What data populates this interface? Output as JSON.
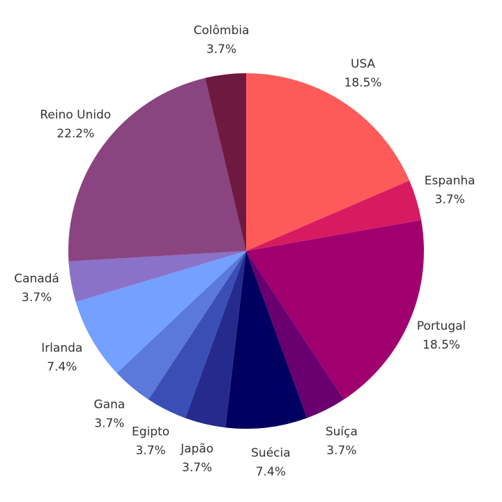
{
  "chart_data": {
    "type": "pie",
    "categories": [
      "USA",
      "Espanha",
      "Portugal",
      "Suíça",
      "Suécia",
      "Japão",
      "Egipto",
      "Gana",
      "Irlanda",
      "Canadá",
      "Reino Unido",
      "Colômbia"
    ],
    "values": [
      18.5,
      3.7,
      18.5,
      3.7,
      7.4,
      3.7,
      3.7,
      3.7,
      7.4,
      3.7,
      22.2,
      3.7
    ],
    "value_labels": [
      "18.5%",
      "3.7%",
      "18.5%",
      "3.7%",
      "7.4%",
      "3.7%",
      "3.7%",
      "3.7%",
      "7.4%",
      "3.7%",
      "22.2%",
      "3.7%"
    ],
    "colors": [
      "#ff5a5a",
      "#d81b60",
      "#a0006e",
      "#6a0070",
      "#000060",
      "#262a8c",
      "#3a4eb6",
      "#5a79da",
      "#74a0ff",
      "#8b72c9",
      "#8a4480",
      "#6e1a40"
    ]
  }
}
